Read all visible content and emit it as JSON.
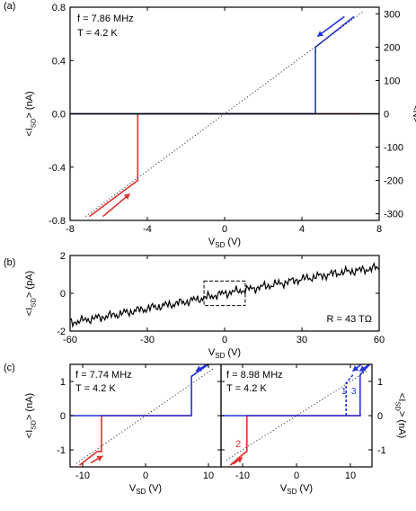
{
  "colors": {
    "red": "#e0302a",
    "blue": "#2233dd",
    "black": "#000000",
    "dotted": "#333333"
  },
  "chart_data": [
    {
      "panel": "(a)",
      "type": "line",
      "annotations": [
        "f = 7.86 MHz",
        "T = 4.2 K"
      ],
      "xlabel_main": "V",
      "xlabel_sub": "SD",
      "xlabel_unit": " (V)",
      "ylabel_left": "<I_SD> (nA)",
      "ylabel_right": "<N>",
      "xlim": [
        -8,
        8
      ],
      "ylim": [
        -0.8,
        0.8
      ],
      "ylim_right": [
        -320,
        320
      ],
      "xticks": [
        -8,
        -4,
        0,
        4,
        8
      ],
      "xtick_labels": [
        "-8",
        "-4",
        "0",
        "4",
        "8"
      ],
      "yticks": [
        -0.8,
        -0.4,
        0.0,
        0.4,
        0.8
      ],
      "ytick_labels": [
        "-0.8",
        "-0.4",
        "0.0",
        "0.4",
        "0.8"
      ],
      "yticks_right": [
        -300,
        -200,
        -100,
        0,
        100,
        200,
        300
      ],
      "ytick_labels_right": [
        "-300",
        "-200",
        "-100",
        "0",
        "100",
        "200",
        "300"
      ],
      "series": [
        {
          "color": "red",
          "x": [
            -7,
            -4.5,
            -4.5,
            0,
            4.6,
            7
          ],
          "y": [
            -0.77,
            -0.5,
            0,
            0,
            0,
            0
          ]
        },
        {
          "color": "blue",
          "x": [
            -8,
            0,
            4.7,
            4.7,
            6.7
          ],
          "y": [
            0,
            0,
            0,
            0.5,
            0.73
          ]
        },
        {
          "color": "black",
          "x": [
            -8,
            8
          ],
          "y": [
            0,
            0
          ]
        },
        {
          "color": "dotted",
          "x": [
            -7.2,
            7.2
          ],
          "y": [
            -0.77,
            0.77
          ]
        }
      ],
      "arrows": [
        {
          "color": "red",
          "x": [
            -6.3,
            -4.9
          ],
          "y": [
            -0.77,
            -0.6
          ]
        },
        {
          "color": "blue",
          "x": [
            6.2,
            4.8
          ],
          "y": [
            0.73,
            0.58
          ]
        }
      ]
    },
    {
      "panel": "(b)",
      "type": "line",
      "annotations": [
        "R = 43 TΩ"
      ],
      "xlabel_main": "V",
      "xlabel_sub": "SD",
      "xlabel_unit": " (V)",
      "ylabel_left": "<I_SD> (pA)",
      "xlim": [
        -60,
        60
      ],
      "ylim": [
        -2,
        2
      ],
      "xticks": [
        -60,
        -30,
        0,
        30,
        60
      ],
      "xtick_labels": [
        "-60",
        "-30",
        "0",
        "30",
        "60"
      ],
      "yticks": [
        -2,
        0,
        2
      ],
      "ytick_labels": [
        "-2",
        "0",
        "2"
      ],
      "series": [
        {
          "color": "black",
          "x": [
            -60,
            -45,
            -30,
            -15,
            0,
            15,
            30,
            45,
            60
          ],
          "y": [
            -1.55,
            -1.2,
            -0.8,
            -0.45,
            0.0,
            0.35,
            0.75,
            1.1,
            1.35
          ]
        }
      ],
      "box": {
        "x": [
          -8,
          8
        ],
        "y": [
          -0.65,
          0.65
        ]
      }
    },
    {
      "panel": "(c) left",
      "type": "line",
      "annotations": [
        "f = 7.74 MHz",
        "T = 4.2 K"
      ],
      "xlabel_main": "V",
      "xlabel_sub": "SD",
      "xlabel_unit": " (V)",
      "ylabel_left": "<I_SD> (nA)",
      "xlim": [
        -12,
        12
      ],
      "ylim": [
        -1.5,
        1.5
      ],
      "xticks": [
        -10,
        0,
        10
      ],
      "xtick_labels": [
        "-10",
        "0",
        "10"
      ],
      "yticks": [
        -1,
        0,
        1
      ],
      "ytick_labels": [
        "-1",
        "0",
        "1"
      ],
      "series": [
        {
          "color": "red",
          "x": [
            -10.5,
            -7.7,
            -7,
            -7,
            0,
            7.3
          ],
          "y": [
            -1.45,
            -1.05,
            -1.05,
            0,
            0,
            0
          ]
        },
        {
          "color": "blue",
          "x": [
            -12,
            0,
            7.3,
            7.3,
            10
          ],
          "y": [
            0,
            0,
            0,
            1.15,
            1.5
          ]
        },
        {
          "color": "dotted",
          "x": [
            -11,
            11
          ],
          "y": [
            -1.4,
            1.4
          ]
        }
      ],
      "arrows": [
        {
          "color": "red",
          "x": [
            -8.7,
            -6.8
          ],
          "y": [
            -1.38,
            -1.18
          ]
        },
        {
          "color": "blue",
          "x": [
            9.8,
            8
          ],
          "y": [
            1.5,
            1.3
          ]
        }
      ]
    },
    {
      "panel": "(c) right",
      "type": "line",
      "annotations": [
        "f = 8.98 MHz",
        "T = 4.2 K",
        "1",
        "2",
        "3"
      ],
      "xlabel_main": "V",
      "xlabel_sub": "SD",
      "xlabel_unit": " (V)",
      "ylabel_right": "<I_SD> (nA)",
      "xlim": [
        -14,
        14
      ],
      "ylim": [
        -1.5,
        1.5
      ],
      "xticks": [
        -10,
        0,
        10
      ],
      "xtick_labels": [
        "-10",
        "0",
        "10"
      ],
      "yticks": [
        -1,
        0,
        1
      ],
      "ytick_labels": [
        "-1",
        "0",
        "1"
      ],
      "series": [
        {
          "color": "red",
          "x": [
            -12.3,
            -9.7,
            -9.2,
            -9.2,
            0,
            12
          ],
          "y": [
            -1.45,
            -1.1,
            -1.05,
            0,
            0,
            0
          ]
        },
        {
          "color": "blue",
          "x": [
            -14,
            0,
            11.8,
            11.8,
            13.6
          ],
          "y": [
            0,
            0,
            0,
            1.2,
            1.5
          ]
        },
        {
          "color": "blue",
          "dashed": true,
          "x": [
            9.2,
            9.2,
            10.5
          ],
          "y": [
            0,
            0.95,
            1.2
          ]
        },
        {
          "color": "dotted",
          "x": [
            -13,
            13
          ],
          "y": [
            -1.3,
            1.3
          ]
        }
      ],
      "arrows": [
        {
          "color": "red",
          "x": [
            -11.8,
            -10
          ],
          "y": [
            -1.42,
            -1.22
          ]
        },
        {
          "color": "blue",
          "x": [
            13.5,
            11.7
          ],
          "y": [
            1.5,
            1.3
          ]
        },
        {
          "color": "blue",
          "x": [
            12,
            10.4
          ],
          "y": [
            1.5,
            1.3
          ]
        }
      ],
      "label_points": [
        {
          "x": 8.8,
          "y": 0.63
        },
        {
          "x": -10.8,
          "y": -0.92
        },
        {
          "x": 10.6,
          "y": 0.63
        }
      ]
    }
  ],
  "panel_labels": [
    "(a)",
    "(b)",
    "(c)"
  ]
}
